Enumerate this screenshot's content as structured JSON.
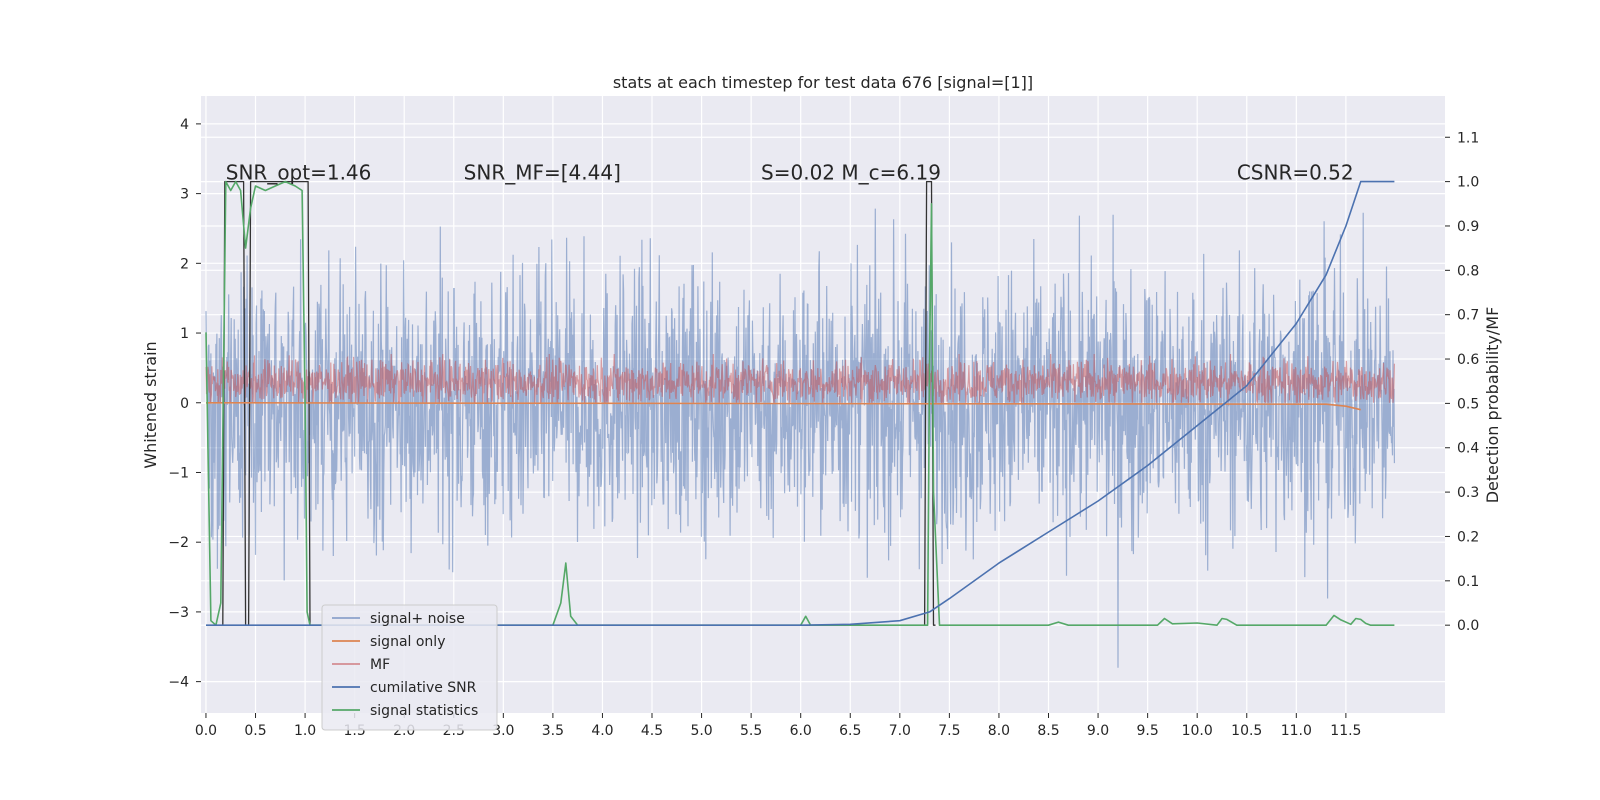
{
  "chart_data": {
    "type": "line",
    "title": "stats at each timestep for test data 676 [signal=[1]]",
    "xlabel": "",
    "ylabel_left": "Whitened strain",
    "ylabel_right": "Detection probability/MF",
    "xlim": [
      -0.05,
      12.5
    ],
    "ylim_left": [
      -4.45,
      4.4
    ],
    "ylim_right": [
      -0.198,
      1.193
    ],
    "x_ticks": [
      "0.0",
      "0.5",
      "1.0",
      "1.5",
      "2.0",
      "2.5",
      "3.0",
      "3.5",
      "4.0",
      "4.5",
      "5.0",
      "5.5",
      "6.0",
      "6.5",
      "7.0",
      "7.5",
      "8.0",
      "8.5",
      "9.0",
      "9.5",
      "10.0",
      "10.5",
      "11.0",
      "11.5"
    ],
    "y_ticks_left": [
      "4",
      "3",
      "2",
      "1",
      "0",
      "−1",
      "−2",
      "−3",
      "−4"
    ],
    "y_ticks_right": [
      "1.1",
      "1.0",
      "0.9",
      "0.8",
      "0.7",
      "0.6",
      "0.5",
      "0.4",
      "0.3",
      "0.2",
      "0.1",
      "0.0"
    ],
    "grid": true,
    "legend_position": "lower-left",
    "annotations": [
      {
        "text": "SNR_opt=1.46",
        "x": 0.2,
        "y": 3.2
      },
      {
        "text": "SNR_MF=[4.44]",
        "x": 2.6,
        "y": 3.2
      },
      {
        "text": "S=0.02  M_c=6.19",
        "x": 5.6,
        "y": 3.2
      },
      {
        "text": "CSNR=0.52",
        "x": 10.4,
        "y": 3.2
      }
    ],
    "series": [
      {
        "name": "signal+ noise",
        "axis": "left",
        "color": "#4c72b0",
        "style": "noisy band",
        "x_range": [
          0.0,
          11.99
        ],
        "approx_range": [
          -3.8,
          4.0
        ],
        "typical_range": [
          -2.4,
          2.4
        ]
      },
      {
        "name": "signal only",
        "axis": "left",
        "color": "#dd8452",
        "x": [
          0.0,
          11.3,
          11.5,
          11.65
        ],
        "y": [
          0.0,
          -0.02,
          -0.05,
          -0.1
        ]
      },
      {
        "name": "MF",
        "axis": "left",
        "color": "#c44e52",
        "style": "noisy band",
        "x_range": [
          0.0,
          11.99
        ],
        "approx_range": [
          0.0,
          0.7
        ]
      },
      {
        "name": "cumilative SNR",
        "axis": "right",
        "color": "#4c72b0",
        "x": [
          0.0,
          6.0,
          6.5,
          7.0,
          7.3,
          7.5,
          8.0,
          8.5,
          9.0,
          9.5,
          10.0,
          10.5,
          11.0,
          11.3,
          11.5,
          11.65,
          11.99
        ],
        "y": [
          0.0,
          0.0,
          0.002,
          0.01,
          0.03,
          0.06,
          0.14,
          0.21,
          0.28,
          0.36,
          0.45,
          0.54,
          0.68,
          0.79,
          0.9,
          1.0,
          1.0
        ]
      },
      {
        "name": "signal statistics",
        "axis": "right",
        "color": "#55a868",
        "x": [
          0.0,
          0.05,
          0.1,
          0.15,
          0.2,
          0.25,
          0.3,
          0.35,
          0.4,
          0.45,
          0.5,
          0.6,
          0.7,
          0.8,
          0.9,
          0.97,
          1.0,
          1.02,
          1.05,
          1.1,
          2.0,
          3.5,
          3.58,
          3.63,
          3.68,
          3.75,
          6.0,
          6.05,
          6.1,
          6.15,
          7.28,
          7.3,
          7.32,
          7.34,
          7.4,
          8.5,
          8.6,
          8.7,
          9.6,
          9.67,
          9.75,
          10.0,
          10.2,
          10.25,
          10.3,
          10.4,
          11.3,
          11.38,
          11.45,
          11.55,
          11.6,
          11.65,
          11.7,
          11.75,
          11.99
        ],
        "y": [
          0.66,
          0.01,
          0.0,
          0.05,
          1.0,
          0.98,
          1.0,
          0.98,
          0.85,
          0.94,
          0.99,
          0.98,
          0.99,
          1.0,
          0.99,
          0.98,
          0.5,
          0.03,
          0.0,
          0.0,
          0.0,
          0.0,
          0.05,
          0.14,
          0.02,
          0.0,
          0.0,
          0.02,
          0.0,
          0.0,
          0.0,
          0.6,
          0.95,
          0.3,
          0.0,
          0.0,
          0.007,
          0.0,
          0.0,
          0.015,
          0.003,
          0.005,
          0.0,
          0.015,
          0.013,
          0.0,
          0.0,
          0.022,
          0.012,
          0.002,
          0.015,
          0.013,
          0.004,
          0.0,
          0.0
        ]
      },
      {
        "name": "",
        "axis": "right",
        "color": "#333333",
        "style": "step markers",
        "x": [
          0.0,
          0.17,
          0.19,
          0.38,
          0.4,
          0.43,
          0.45,
          1.03,
          1.05,
          7.25,
          7.27,
          7.32,
          7.34,
          7.36
        ],
        "y": [
          0.0,
          0.0,
          1.0,
          1.0,
          0.0,
          0.0,
          1.0,
          1.0,
          0.0,
          0.0,
          1.0,
          1.0,
          0.0,
          0.0
        ]
      }
    ]
  }
}
